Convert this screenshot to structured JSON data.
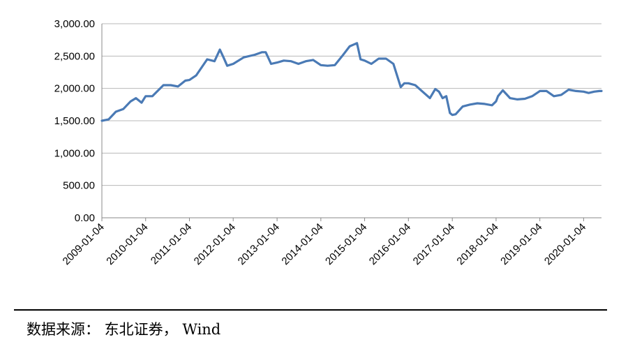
{
  "chart_data": {
    "type": "line",
    "title": "",
    "xlabel": "",
    "ylabel": "",
    "ylim": [
      0,
      3000
    ],
    "yticks": [
      "0.00",
      "500.00",
      "1,000.00",
      "1,500.00",
      "2,000.00",
      "2,500.00",
      "3,000.00"
    ],
    "ytick_values": [
      0,
      500,
      1000,
      1500,
      2000,
      2500,
      3000
    ],
    "xticks": [
      "2009-01-04",
      "2010-01-04",
      "2011-01-04",
      "2012-01-04",
      "2013-01-04",
      "2014-01-04",
      "2015-01-04",
      "2016-01-04",
      "2017-01-04",
      "2018-01-04",
      "2019-01-04",
      "2020-01-04"
    ],
    "xlim": [
      "2009-01-04",
      "2020-06-01"
    ],
    "grid": "horizontal",
    "series_color": "#4a7ab5",
    "series": [
      {
        "x": [
          "2009-01-04",
          "2009-03-01",
          "2009-05-01",
          "2009-07-01",
          "2009-09-01",
          "2009-10-15",
          "2009-12-01",
          "2010-01-04",
          "2010-03-01",
          "2010-06-01",
          "2010-08-01",
          "2010-10-01",
          "2010-12-01",
          "2011-01-04",
          "2011-03-01",
          "2011-06-01",
          "2011-08-01",
          "2011-09-15",
          "2011-10-15",
          "2011-11-15",
          "2012-01-04",
          "2012-04-01",
          "2012-07-01",
          "2012-09-01",
          "2012-10-01",
          "2012-11-15",
          "2013-01-04",
          "2013-03-01",
          "2013-05-01",
          "2013-07-01",
          "2013-09-01",
          "2013-11-01",
          "2014-01-04",
          "2014-03-01",
          "2014-05-01",
          "2014-07-01",
          "2014-09-01",
          "2014-11-01",
          "2014-12-01",
          "2015-01-04",
          "2015-03-01",
          "2015-05-01",
          "2015-07-01",
          "2015-09-01",
          "2015-11-01",
          "2015-12-01",
          "2016-01-04",
          "2016-03-01",
          "2016-05-01",
          "2016-07-01",
          "2016-08-15",
          "2016-09-15",
          "2016-10-15",
          "2016-11-15",
          "2016-12-15",
          "2017-01-04",
          "2017-02-01",
          "2017-04-01",
          "2017-06-01",
          "2017-08-01",
          "2017-10-01",
          "2017-12-01",
          "2018-01-04",
          "2018-01-20",
          "2018-03-01",
          "2018-05-01",
          "2018-07-01",
          "2018-09-01",
          "2018-11-01",
          "2019-01-04",
          "2019-03-01",
          "2019-05-01",
          "2019-07-01",
          "2019-09-01",
          "2019-11-01",
          "2020-01-04",
          "2020-02-15",
          "2020-04-01",
          "2020-05-15",
          "2020-06-01"
        ],
        "y": [
          1500,
          1520,
          1640,
          1680,
          1800,
          1850,
          1780,
          1880,
          1880,
          2050,
          2050,
          2030,
          2120,
          2130,
          2200,
          2450,
          2420,
          2600,
          2480,
          2350,
          2380,
          2480,
          2520,
          2560,
          2560,
          2380,
          2400,
          2430,
          2420,
          2380,
          2420,
          2440,
          2360,
          2350,
          2360,
          2500,
          2650,
          2700,
          2450,
          2430,
          2380,
          2460,
          2460,
          2380,
          2020,
          2080,
          2080,
          2050,
          1950,
          1850,
          1990,
          1950,
          1850,
          1880,
          1620,
          1590,
          1600,
          1720,
          1750,
          1770,
          1760,
          1740,
          1800,
          1880,
          1970,
          1850,
          1830,
          1840,
          1880,
          1960,
          1960,
          1880,
          1900,
          1980,
          1960,
          1950,
          1930,
          1950,
          1960,
          1960
        ]
      }
    ]
  },
  "footer": {
    "source_text": "数据来源： 东北证券， Wind"
  }
}
